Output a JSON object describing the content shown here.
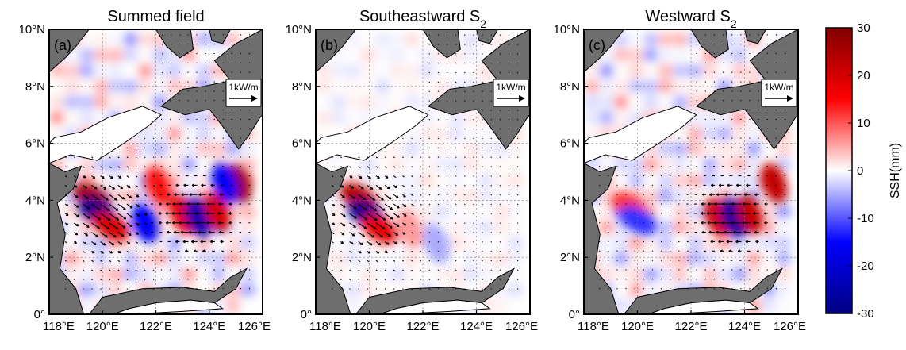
{
  "chart_data": [
    {
      "type": "heatmap",
      "panel_label": "(a)",
      "title": "Summed field",
      "x_ticks": [
        "118°E",
        "120°E",
        "122°E",
        "124°E",
        "126°E"
      ],
      "y_ticks": [
        "0°",
        "2°N",
        "4°N",
        "6°N",
        "8°N",
        "10°N"
      ],
      "xlim": [
        118,
        126
      ],
      "ylim": [
        0,
        10
      ],
      "reference_vector": "1kW/m",
      "features": [
        {
          "lon": 119.6,
          "lat": 4.1,
          "ssh": 26
        },
        {
          "lon": 119.8,
          "lat": 3.6,
          "ssh": -28
        },
        {
          "lon": 120.3,
          "lat": 3.1,
          "ssh": 20
        },
        {
          "lon": 123.0,
          "lat": 3.5,
          "ssh": 18
        },
        {
          "lon": 123.6,
          "lat": 3.4,
          "ssh": -24
        },
        {
          "lon": 124.3,
          "lat": 3.6,
          "ssh": 20
        },
        {
          "lon": 125.1,
          "lat": 4.6,
          "ssh": 26
        },
        {
          "lon": 124.6,
          "lat": 4.6,
          "ssh": -16
        },
        {
          "lon": 122.1,
          "lat": 4.5,
          "ssh": 14
        },
        {
          "lon": 121.6,
          "lat": 3.2,
          "ssh": -16
        }
      ]
    },
    {
      "type": "heatmap",
      "panel_label": "(b)",
      "title": "Southeastward S",
      "title_subscript": "2",
      "x_ticks": [
        "118°E",
        "120°E",
        "122°E",
        "124°E",
        "126°E"
      ],
      "y_ticks": [
        "0°",
        "2°N",
        "4°N",
        "6°N",
        "8°N",
        "10°N"
      ],
      "xlim": [
        118,
        126
      ],
      "ylim": [
        0,
        10
      ],
      "reference_vector": "1kW/m",
      "features": [
        {
          "lon": 119.6,
          "lat": 4.1,
          "ssh": 24
        },
        {
          "lon": 119.9,
          "lat": 3.5,
          "ssh": -28
        },
        {
          "lon": 120.4,
          "lat": 3.0,
          "ssh": 18
        },
        {
          "lon": 121.5,
          "lat": 3.0,
          "ssh": 6
        },
        {
          "lon": 122.5,
          "lat": 2.5,
          "ssh": -5
        }
      ]
    },
    {
      "type": "heatmap",
      "panel_label": "(c)",
      "title": "Westward S",
      "title_subscript": "2",
      "x_ticks": [
        "118°E",
        "120°E",
        "122°E",
        "124°E",
        "126°E"
      ],
      "y_ticks": [
        "0°",
        "2°N",
        "4°N",
        "6°N",
        "8°N",
        "10°N"
      ],
      "xlim": [
        118,
        126
      ],
      "ylim": [
        0,
        10
      ],
      "reference_vector": "1kW/m",
      "features": [
        {
          "lon": 123.0,
          "lat": 3.4,
          "ssh": 20
        },
        {
          "lon": 123.6,
          "lat": 3.4,
          "ssh": -26
        },
        {
          "lon": 124.2,
          "lat": 3.5,
          "ssh": 22
        },
        {
          "lon": 125.1,
          "lat": 4.6,
          "ssh": 22
        },
        {
          "lon": 119.7,
          "lat": 3.8,
          "ssh": 12
        },
        {
          "lon": 120.0,
          "lat": 3.3,
          "ssh": -12
        }
      ]
    }
  ],
  "colorbar": {
    "label": "SSH(mm)",
    "min": -30,
    "max": 30,
    "ticks": [
      "30",
      "20",
      "10",
      "0",
      "-10",
      "-20",
      "-30"
    ],
    "colors": [
      "#000080",
      "#0000ff",
      "#ffffff",
      "#ff0000",
      "#800000"
    ]
  },
  "land_color": "#6e6e6e"
}
